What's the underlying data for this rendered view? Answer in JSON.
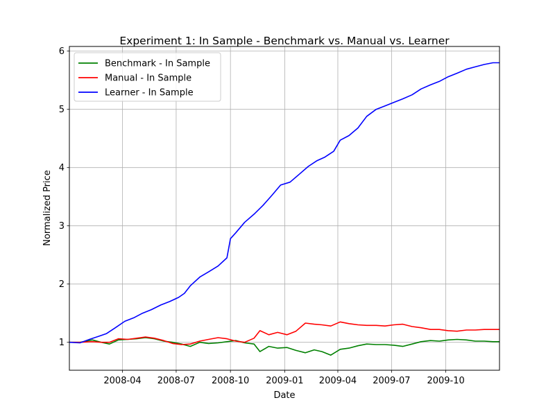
{
  "chart_data": {
    "type": "line",
    "title": "Experiment 1: In Sample - Benchmark vs. Manual vs. Learner",
    "xlabel": "Date",
    "ylabel": "Normalized Price",
    "xlim": [
      "2008-01-02",
      "2009-12-31"
    ],
    "ylim": [
      0.52,
      6.08
    ],
    "grid": true,
    "legend": "top-left",
    "x_ticks": [
      "2008-04",
      "2008-07",
      "2008-10",
      "2009-01",
      "2009-04",
      "2009-07",
      "2009-10"
    ],
    "x_tick_dates": [
      "2008-04-01",
      "2008-07-01",
      "2008-10-01",
      "2009-01-01",
      "2009-04-01",
      "2009-07-01",
      "2009-10-01"
    ],
    "y_ticks": [
      1,
      2,
      3,
      4,
      5,
      6
    ],
    "series": [
      {
        "name": "Benchmark - In Sample",
        "color": "#008000",
        "x": [
          "2008-01-02",
          "2008-01-20",
          "2008-02-10",
          "2008-02-25",
          "2008-03-10",
          "2008-03-25",
          "2008-04-10",
          "2008-04-25",
          "2008-05-10",
          "2008-05-25",
          "2008-06-10",
          "2008-06-25",
          "2008-07-10",
          "2008-07-25",
          "2008-08-10",
          "2008-08-25",
          "2008-09-10",
          "2008-09-25",
          "2008-10-10",
          "2008-10-25",
          "2008-11-10",
          "2008-11-20",
          "2008-12-05",
          "2008-12-20",
          "2009-01-05",
          "2009-01-20",
          "2009-02-05",
          "2009-02-20",
          "2009-03-05",
          "2009-03-20",
          "2009-04-05",
          "2009-04-20",
          "2009-05-05",
          "2009-05-20",
          "2009-06-05",
          "2009-06-20",
          "2009-07-05",
          "2009-07-20",
          "2009-08-05",
          "2009-08-20",
          "2009-09-05",
          "2009-09-20",
          "2009-10-05",
          "2009-10-20",
          "2009-11-05",
          "2009-11-20",
          "2009-12-05",
          "2009-12-20",
          "2009-12-31"
        ],
        "values": [
          1.0,
          1.0,
          1.04,
          1.0,
          0.97,
          1.04,
          1.05,
          1.06,
          1.08,
          1.06,
          1.02,
          1.0,
          0.97,
          0.93,
          1.0,
          0.98,
          0.99,
          1.01,
          1.03,
          0.99,
          0.97,
          0.84,
          0.93,
          0.9,
          0.91,
          0.86,
          0.82,
          0.87,
          0.84,
          0.78,
          0.88,
          0.9,
          0.94,
          0.97,
          0.96,
          0.96,
          0.95,
          0.93,
          0.97,
          1.01,
          1.03,
          1.02,
          1.04,
          1.05,
          1.04,
          1.02,
          1.02,
          1.01,
          1.01
        ]
      },
      {
        "name": "Manual - In Sample",
        "color": "#ff0000",
        "x": [
          "2008-01-02",
          "2008-01-20",
          "2008-02-10",
          "2008-02-25",
          "2008-03-10",
          "2008-03-25",
          "2008-04-10",
          "2008-04-25",
          "2008-05-10",
          "2008-05-25",
          "2008-06-10",
          "2008-06-25",
          "2008-07-10",
          "2008-07-25",
          "2008-08-10",
          "2008-08-25",
          "2008-09-10",
          "2008-09-25",
          "2008-10-10",
          "2008-10-25",
          "2008-11-10",
          "2008-11-20",
          "2008-12-05",
          "2008-12-20",
          "2009-01-05",
          "2009-01-20",
          "2009-02-05",
          "2009-02-20",
          "2009-03-05",
          "2009-03-20",
          "2009-04-05",
          "2009-04-20",
          "2009-05-05",
          "2009-05-20",
          "2009-06-05",
          "2009-06-20",
          "2009-07-05",
          "2009-07-20",
          "2009-08-05",
          "2009-08-20",
          "2009-09-05",
          "2009-09-20",
          "2009-10-05",
          "2009-10-20",
          "2009-11-05",
          "2009-11-20",
          "2009-12-05",
          "2009-12-20",
          "2009-12-31"
        ],
        "values": [
          1.0,
          1.0,
          1.01,
          1.0,
          1.0,
          1.06,
          1.05,
          1.07,
          1.09,
          1.07,
          1.03,
          0.98,
          0.96,
          0.97,
          1.02,
          1.05,
          1.08,
          1.06,
          1.02,
          1.0,
          1.07,
          1.2,
          1.13,
          1.17,
          1.13,
          1.19,
          1.33,
          1.31,
          1.3,
          1.28,
          1.35,
          1.32,
          1.3,
          1.29,
          1.29,
          1.28,
          1.3,
          1.31,
          1.27,
          1.25,
          1.22,
          1.22,
          1.2,
          1.19,
          1.21,
          1.21,
          1.22,
          1.22,
          1.22
        ]
      },
      {
        "name": "Learner - In Sample",
        "color": "#0000ff",
        "x": [
          "2008-01-02",
          "2008-01-20",
          "2008-02-05",
          "2008-02-20",
          "2008-03-05",
          "2008-03-20",
          "2008-04-05",
          "2008-04-20",
          "2008-05-05",
          "2008-05-20",
          "2008-06-05",
          "2008-06-20",
          "2008-07-05",
          "2008-07-15",
          "2008-07-25",
          "2008-08-10",
          "2008-08-25",
          "2008-09-10",
          "2008-09-25",
          "2008-10-01",
          "2008-10-10",
          "2008-10-25",
          "2008-11-10",
          "2008-11-25",
          "2008-12-10",
          "2008-12-25",
          "2009-01-10",
          "2009-01-25",
          "2009-02-10",
          "2009-02-25",
          "2009-03-10",
          "2009-03-25",
          "2009-04-05",
          "2009-04-20",
          "2009-05-05",
          "2009-05-20",
          "2009-06-05",
          "2009-06-20",
          "2009-07-05",
          "2009-07-20",
          "2009-08-05",
          "2009-08-20",
          "2009-09-05",
          "2009-09-20",
          "2009-10-05",
          "2009-10-20",
          "2009-11-05",
          "2009-11-20",
          "2009-12-05",
          "2009-12-20",
          "2009-12-31"
        ],
        "values": [
          1.0,
          0.99,
          1.05,
          1.1,
          1.15,
          1.25,
          1.36,
          1.42,
          1.5,
          1.56,
          1.64,
          1.7,
          1.77,
          1.84,
          1.97,
          2.12,
          2.21,
          2.31,
          2.45,
          2.78,
          2.88,
          3.06,
          3.2,
          3.35,
          3.52,
          3.7,
          3.75,
          3.88,
          4.02,
          4.12,
          4.18,
          4.28,
          4.47,
          4.55,
          4.68,
          4.88,
          5.0,
          5.06,
          5.12,
          5.18,
          5.25,
          5.35,
          5.42,
          5.48,
          5.56,
          5.62,
          5.69,
          5.73,
          5.77,
          5.8,
          5.8
        ]
      }
    ]
  }
}
